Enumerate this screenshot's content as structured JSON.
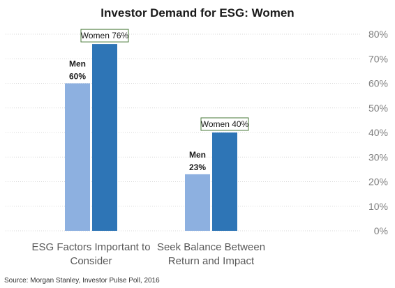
{
  "chart_data": {
    "type": "bar",
    "title": "Investor Demand for ESG: Women",
    "categories": [
      "ESG Factors Important to Consider",
      "Seek Balance Between Return and Impact"
    ],
    "category_lines": [
      [
        "ESG Factors Important to",
        "Consider"
      ],
      [
        "Seek Balance Between",
        "Return and Impact"
      ]
    ],
    "series": [
      {
        "name": "Men",
        "values": [
          60,
          23
        ],
        "color": "#8db0e0"
      },
      {
        "name": "Women",
        "values": [
          76,
          40
        ],
        "color": "#2e75b6"
      }
    ],
    "ylim": [
      0,
      80
    ],
    "yticks": [
      "0%",
      "10%",
      "20%",
      "30%",
      "40%",
      "50%",
      "60%",
      "70%",
      "80%"
    ],
    "grid": true,
    "y_axis_side": "right",
    "data_labels": {
      "men": [
        [
          "Men",
          "60%"
        ],
        [
          "Men",
          "23%"
        ]
      ],
      "women": [
        "Women 76%",
        "Women 40%"
      ]
    },
    "label_box_border": "#4a7a3a",
    "source": "Source: Morgan Stanley, Investor Pulse Poll, 2016"
  }
}
